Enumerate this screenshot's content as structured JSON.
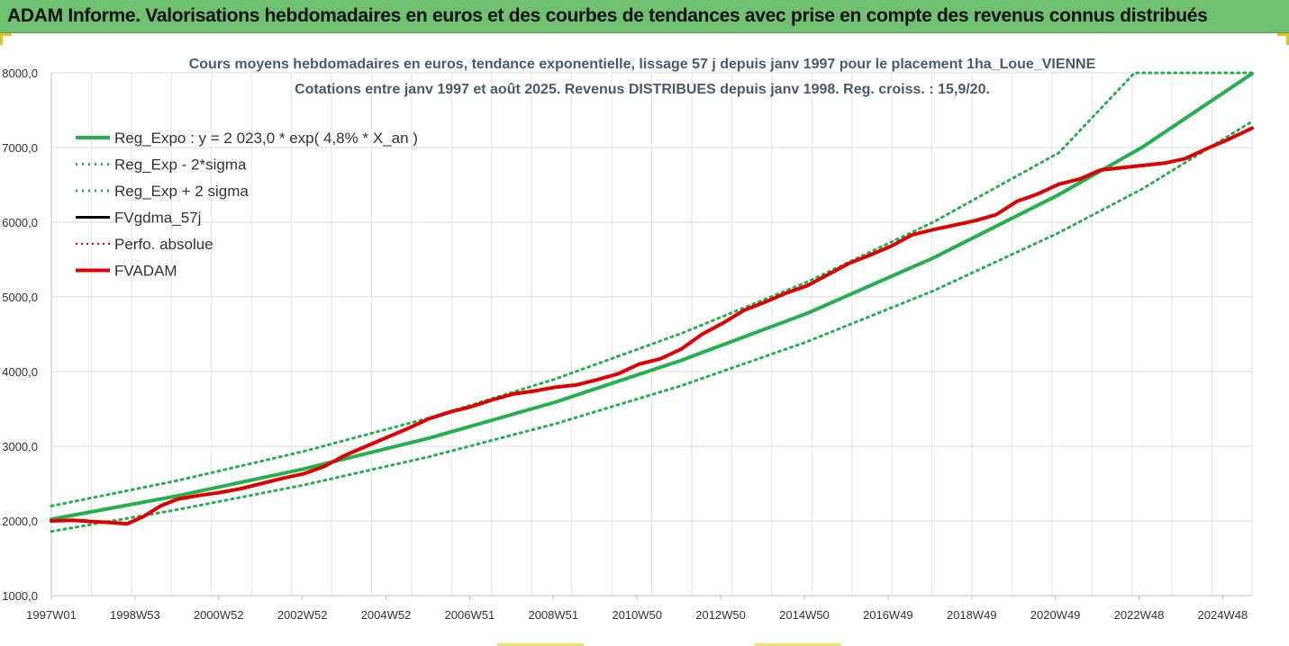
{
  "header": {
    "title": "ADAM Informe. Valorisations hebdomadaires en euros et des courbes de tendances avec prise en compte des revenus connus distribués"
  },
  "chart_data": {
    "type": "line",
    "title": "Cours moyens hebdomadaires en euros, tendance exponentielle, lissage 57 j depuis janv 1997 pour le placement 1ha_Loue_VIENNE",
    "subtitle": "Cotations entre janv 1997 et août 2025. Revenus DISTRIBUES depuis janv 1998. Reg. croiss. : 15,9/20.",
    "xlabel": "",
    "ylabel": "",
    "ylim": [
      1000,
      8000
    ],
    "xlim": [
      1997.0,
      2025.6
    ],
    "yticks": [
      "1000,0",
      "2000,0",
      "3000,0",
      "4000,0",
      "5000,0",
      "6000,0",
      "7000,0",
      "8000,0"
    ],
    "xticks": [
      "1997W01",
      "1998W53",
      "2000W52",
      "2002W52",
      "2004W52",
      "2006W51",
      "2008W51",
      "2010W50",
      "2012W50",
      "2014W50",
      "2016W49",
      "2018W49",
      "2020W49",
      "2022W48",
      "2024W48"
    ],
    "grid": true,
    "legend_position": "top-left",
    "colors": {
      "reg": "#22b14c",
      "reg_dotted": "#22b14c",
      "fvgdma": "#000000",
      "perfo": "#e00000",
      "fvadam": "#e00000"
    },
    "series": [
      {
        "name": "Reg_Expo : y = 2 023,0 * exp( 4,8% *  X_an )",
        "style": "solid-green",
        "x": [
          1997.0,
          2000,
          2003,
          2006,
          2009,
          2012,
          2015,
          2018,
          2021,
          2023,
          2025.6
        ],
        "y": [
          2023,
          2335,
          2695,
          3110,
          3590,
          4150,
          4780,
          5520,
          6370,
          7010,
          7990
        ]
      },
      {
        "name": "Reg_Exp - 2*sigma",
        "style": "dotted-green",
        "x": [
          1997.0,
          2000,
          2003,
          2006,
          2009,
          2012,
          2015,
          2018,
          2021,
          2023,
          2025.6
        ],
        "y": [
          1860,
          2150,
          2480,
          2860,
          3300,
          3810,
          4400,
          5080,
          5860,
          6450,
          7350
        ]
      },
      {
        "name": "Reg_Exp + 2 sigma",
        "style": "dotted-green",
        "x": [
          1997.0,
          2000,
          2003,
          2006,
          2009,
          2012,
          2015,
          2018,
          2021,
          2022.8,
          2025.6
        ],
        "y": [
          2200,
          2540,
          2930,
          3380,
          3900,
          4510,
          5200,
          6000,
          6930,
          8000,
          8000
        ]
      },
      {
        "name": "FVgdma_57j",
        "style": "solid-black",
        "x": [
          1997.0,
          1997.5,
          1998.0,
          1998.4,
          1998.8,
          1999.2,
          1999.6,
          2000.0,
          2000.5,
          2001.0,
          2001.5,
          2002.0,
          2002.5,
          2003.0,
          2003.5,
          2004.0,
          2004.5,
          2005.0,
          2005.5,
          2006.0,
          2006.5,
          2007.0,
          2007.5,
          2008.0,
          2008.5,
          2009.0,
          2009.5,
          2010.0,
          2010.5,
          2011.0,
          2011.5,
          2012.0,
          2012.5,
          2013.0,
          2013.5,
          2014.0,
          2014.5,
          2015.0,
          2015.5,
          2016.0,
          2016.5,
          2017.0,
          2017.5,
          2018.0,
          2018.5,
          2019.0,
          2019.5,
          2020.0,
          2020.5,
          2021.0,
          2021.5,
          2022.0,
          2022.5,
          2023.0,
          2023.5,
          2024.0,
          2024.5,
          2025.0,
          2025.6
        ],
        "y": [
          2000,
          2010,
          1990,
          1980,
          1960,
          2060,
          2200,
          2290,
          2340,
          2380,
          2430,
          2500,
          2570,
          2630,
          2730,
          2880,
          3000,
          3120,
          3240,
          3370,
          3460,
          3530,
          3620,
          3700,
          3740,
          3790,
          3820,
          3890,
          3970,
          4100,
          4170,
          4300,
          4500,
          4650,
          4820,
          4930,
          5050,
          5150,
          5300,
          5450,
          5560,
          5680,
          5830,
          5900,
          5960,
          6020,
          6100,
          6280,
          6380,
          6510,
          6580,
          6700,
          6730,
          6760,
          6790,
          6850,
          6980,
          7100,
          7260
        ]
      },
      {
        "name": "Perfo. absolue",
        "style": "dotted-red",
        "x": [
          1997.0,
          1997.5,
          1998.0,
          1998.4,
          1998.8,
          1999.2,
          1999.6,
          2000.0,
          2000.5,
          2001.0,
          2001.5,
          2002.0,
          2002.5,
          2003.0,
          2003.5,
          2004.0,
          2004.5,
          2005.0,
          2005.5,
          2006.0,
          2006.5,
          2007.0,
          2007.5,
          2008.0,
          2008.5,
          2009.0,
          2009.5,
          2010.0,
          2010.5,
          2011.0,
          2011.5,
          2012.0,
          2012.5,
          2013.0,
          2013.5,
          2014.0,
          2014.5,
          2015.0,
          2015.5,
          2016.0,
          2016.5,
          2017.0,
          2017.5,
          2018.0,
          2018.5,
          2019.0,
          2019.5,
          2020.0,
          2020.5,
          2021.0,
          2021.5,
          2022.0,
          2022.5,
          2023.0,
          2023.5,
          2024.0,
          2024.5,
          2025.0,
          2025.6
        ],
        "y": [
          2000,
          2010,
          1990,
          1980,
          1960,
          2060,
          2200,
          2290,
          2340,
          2380,
          2430,
          2500,
          2570,
          2630,
          2730,
          2880,
          3000,
          3120,
          3240,
          3370,
          3460,
          3530,
          3620,
          3700,
          3740,
          3790,
          3820,
          3890,
          3970,
          4100,
          4170,
          4300,
          4500,
          4650,
          4820,
          4930,
          5050,
          5150,
          5300,
          5450,
          5560,
          5680,
          5830,
          5900,
          5960,
          6020,
          6100,
          6280,
          6380,
          6510,
          6580,
          6700,
          6730,
          6760,
          6790,
          6850,
          6980,
          7100,
          7260
        ]
      },
      {
        "name": "FVADAM",
        "style": "solid-red",
        "x": [
          1997.0,
          1997.5,
          1998.0,
          1998.4,
          1998.8,
          1999.2,
          1999.6,
          2000.0,
          2000.5,
          2001.0,
          2001.5,
          2002.0,
          2002.5,
          2003.0,
          2003.5,
          2004.0,
          2004.5,
          2005.0,
          2005.5,
          2006.0,
          2006.5,
          2007.0,
          2007.5,
          2008.0,
          2008.5,
          2009.0,
          2009.5,
          2010.0,
          2010.5,
          2011.0,
          2011.5,
          2012.0,
          2012.5,
          2013.0,
          2013.5,
          2014.0,
          2014.5,
          2015.0,
          2015.5,
          2016.0,
          2016.5,
          2017.0,
          2017.5,
          2018.0,
          2018.5,
          2019.0,
          2019.5,
          2020.0,
          2020.5,
          2021.0,
          2021.5,
          2022.0,
          2022.5,
          2023.0,
          2023.5,
          2024.0,
          2024.5,
          2025.0,
          2025.6
        ],
        "y": [
          2000,
          2010,
          1990,
          1980,
          1960,
          2060,
          2200,
          2290,
          2340,
          2380,
          2430,
          2500,
          2570,
          2630,
          2730,
          2880,
          3000,
          3120,
          3240,
          3370,
          3460,
          3530,
          3620,
          3700,
          3740,
          3790,
          3820,
          3890,
          3970,
          4100,
          4170,
          4300,
          4500,
          4650,
          4820,
          4930,
          5050,
          5150,
          5300,
          5450,
          5560,
          5680,
          5830,
          5900,
          5960,
          6020,
          6100,
          6280,
          6380,
          6510,
          6580,
          6700,
          6730,
          6760,
          6790,
          6850,
          6980,
          7100,
          7260
        ]
      }
    ]
  }
}
